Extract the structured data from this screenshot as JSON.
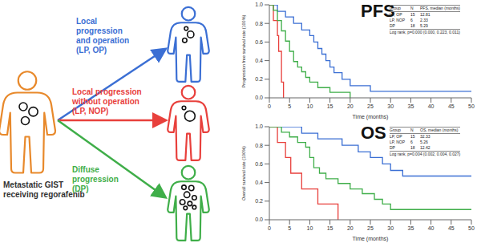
{
  "diagram": {
    "source": {
      "lines": [
        "Metastatic GIST",
        "receiving regorafenib"
      ]
    },
    "groups": [
      {
        "lines": [
          "Local",
          "progression",
          "and operation",
          "(LP, OP)"
        ]
      },
      {
        "lines": [
          "Local progression",
          "without operation",
          "(LP, NOP)"
        ]
      },
      {
        "lines": [
          "Diffuse",
          "progression",
          "(DP)"
        ]
      }
    ]
  },
  "chart_data": [
    {
      "type": "line",
      "title": "PFS",
      "x_label": "Time (months)",
      "y_label": "Progression free survival rate (100%)",
      "xlim": [
        0,
        50
      ],
      "xticks": [
        0,
        5,
        10,
        15,
        20,
        25,
        30,
        35,
        40,
        45,
        50
      ],
      "ylim": [
        0,
        1
      ],
      "yticks": [
        {
          "value": 0,
          "label": "0.0"
        },
        {
          "value": 0.2,
          "label": "0.2"
        },
        {
          "value": 0.4,
          "label": "0.4"
        },
        {
          "value": 0.6,
          "label": "0.6"
        },
        {
          "value": 0.8,
          "label": "0.8"
        },
        {
          "value": 1,
          "label": "1.0"
        }
      ],
      "line_style": "step",
      "table": {
        "header": [
          "Group",
          "N",
          "PFS, median (months)"
        ],
        "rows": [
          [
            "LP, OP",
            15,
            12.81
          ],
          [
            "LP, NOP",
            6,
            2.33
          ],
          [
            "DP",
            18,
            5.29
          ]
        ]
      },
      "annotations": [
        "Log rank, p=0.000 (0.000, 0.223, 0.011)"
      ],
      "series": [
        {
          "name": "LP, OP",
          "color": "#3b6fd4",
          "x": [
            0,
            2,
            4,
            6,
            8,
            10,
            11,
            12,
            13,
            14,
            15,
            16,
            18,
            20,
            25,
            50
          ],
          "values": [
            1,
            0.93,
            0.87,
            0.8,
            0.73,
            0.67,
            0.6,
            0.53,
            0.47,
            0.4,
            0.33,
            0.27,
            0.2,
            0.13,
            0.07,
            0.07
          ]
        },
        {
          "name": "LP, NOP",
          "color": "#e8403c",
          "x": [
            0,
            1,
            2,
            2.3,
            3,
            3.5
          ],
          "values": [
            1,
            0.83,
            0.67,
            0.5,
            0.17,
            0
          ]
        },
        {
          "name": "DP",
          "color": "#3fae49",
          "x": [
            0,
            1,
            2,
            3,
            4,
            5,
            6,
            7,
            8,
            9,
            10,
            12,
            15,
            20
          ],
          "values": [
            1,
            0.94,
            0.83,
            0.72,
            0.61,
            0.5,
            0.39,
            0.33,
            0.28,
            0.22,
            0.17,
            0.11,
            0.06,
            0
          ]
        }
      ]
    },
    {
      "type": "line",
      "title": "OS",
      "x_label": "Time (months)",
      "y_label": "Overall survival rate (100%)",
      "xlim": [
        0,
        50
      ],
      "xticks": [
        0,
        5,
        10,
        15,
        20,
        25,
        30,
        35,
        40,
        45,
        50
      ],
      "ylim": [
        0,
        1
      ],
      "yticks": [
        {
          "value": 0,
          "label": "0.0"
        },
        {
          "value": 0.2,
          "label": "0.2"
        },
        {
          "value": 0.4,
          "label": "0.4"
        },
        {
          "value": 0.6,
          "label": "0.6"
        },
        {
          "value": 0.8,
          "label": "0.8"
        },
        {
          "value": 1,
          "label": "1.0"
        }
      ],
      "line_style": "step",
      "table": {
        "header": [
          "Group",
          "N",
          "OS, median (months)"
        ],
        "rows": [
          [
            "LP, OP",
            15,
            32.33
          ],
          [
            "LP, NOP",
            6,
            5.26
          ],
          [
            "DP",
            18,
            12.42
          ]
        ]
      },
      "annotations": [
        "Log rank, p=0.004 (0.002, 0.004, 0.027)"
      ],
      "series": [
        {
          "name": "LP, OP",
          "color": "#3b6fd4",
          "x": [
            0,
            8,
            12,
            18,
            22,
            25,
            28,
            30,
            33,
            50
          ],
          "values": [
            1,
            0.93,
            0.87,
            0.8,
            0.73,
            0.67,
            0.6,
            0.53,
            0.47,
            0.47
          ]
        },
        {
          "name": "LP, NOP",
          "color": "#e8403c",
          "x": [
            0,
            2,
            4,
            5.3,
            8,
            12,
            17
          ],
          "values": [
            1,
            0.83,
            0.67,
            0.5,
            0.33,
            0.17,
            0
          ]
        },
        {
          "name": "DP",
          "color": "#3fae49",
          "x": [
            0,
            3,
            5,
            7,
            9,
            10,
            11,
            12.4,
            14,
            17,
            20,
            23,
            26,
            28,
            30,
            50
          ],
          "values": [
            1,
            0.94,
            0.89,
            0.83,
            0.78,
            0.67,
            0.56,
            0.5,
            0.44,
            0.39,
            0.33,
            0.28,
            0.22,
            0.17,
            0.11,
            0.11
          ]
        }
      ]
    }
  ]
}
